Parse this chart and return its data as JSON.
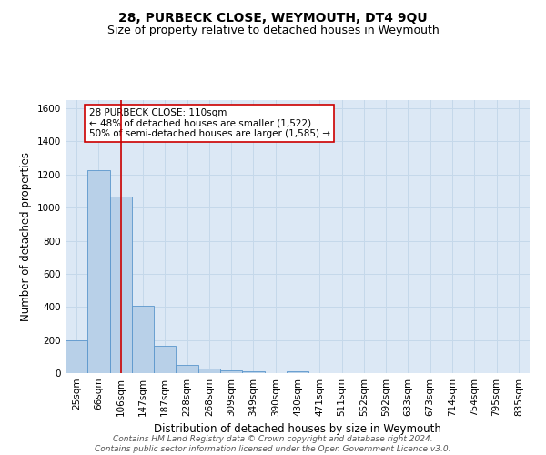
{
  "title": "28, PURBECK CLOSE, WEYMOUTH, DT4 9QU",
  "subtitle": "Size of property relative to detached houses in Weymouth",
  "xlabel": "Distribution of detached houses by size in Weymouth",
  "ylabel": "Number of detached properties",
  "footer_line1": "Contains HM Land Registry data © Crown copyright and database right 2024.",
  "footer_line2": "Contains public sector information licensed under the Open Government Licence v3.0.",
  "bin_labels": [
    "25sqm",
    "66sqm",
    "106sqm",
    "147sqm",
    "187sqm",
    "228sqm",
    "268sqm",
    "309sqm",
    "349sqm",
    "390sqm",
    "430sqm",
    "471sqm",
    "511sqm",
    "552sqm",
    "592sqm",
    "633sqm",
    "673sqm",
    "714sqm",
    "754sqm",
    "795sqm",
    "835sqm"
  ],
  "bar_values": [
    200,
    1225,
    1065,
    408,
    165,
    50,
    25,
    15,
    10,
    0,
    10,
    0,
    0,
    0,
    0,
    0,
    0,
    0,
    0,
    0,
    0
  ],
  "bar_color": "#b8d0e8",
  "bar_edgecolor": "#5a96cc",
  "grid_color": "#c5d8ea",
  "background_color": "#dce8f5",
  "vline_x": 2.0,
  "vline_color": "#cc0000",
  "ylim": [
    0,
    1650
  ],
  "yticks": [
    0,
    200,
    400,
    600,
    800,
    1000,
    1200,
    1400,
    1600
  ],
  "annotation_text": "28 PURBECK CLOSE: 110sqm\n← 48% of detached houses are smaller (1,522)\n50% of semi-detached houses are larger (1,585) →",
  "annotation_box_color": "#ffffff",
  "annotation_box_edgecolor": "#cc0000",
  "title_fontsize": 10,
  "subtitle_fontsize": 9,
  "axis_label_fontsize": 8.5,
  "tick_fontsize": 7.5,
  "annotation_fontsize": 7.5,
  "footer_fontsize": 6.5
}
